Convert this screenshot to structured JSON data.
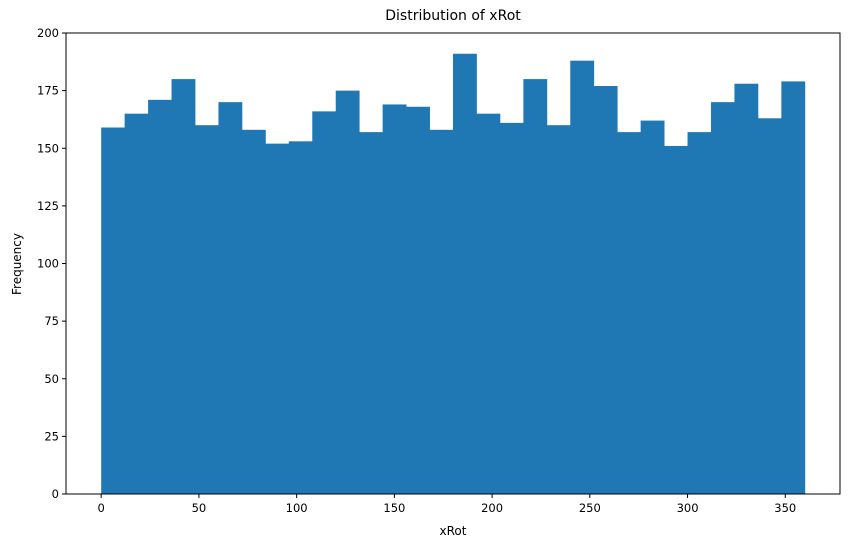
{
  "chart_data": {
    "type": "bar",
    "subtype": "histogram",
    "title": "Distribution of xRot",
    "xlabel": "xRot",
    "ylabel": "Frequency",
    "xlim": [
      -18,
      378
    ],
    "ylim": [
      0,
      200
    ],
    "xticks": [
      0,
      50,
      100,
      150,
      200,
      250,
      300,
      350
    ],
    "yticks": [
      0,
      25,
      50,
      75,
      100,
      125,
      150,
      175,
      200
    ],
    "bin_edges": [
      0,
      12,
      24,
      36,
      48,
      60,
      72,
      84,
      96,
      108,
      120,
      132,
      144,
      156,
      168,
      180,
      192,
      204,
      216,
      228,
      240,
      252,
      264,
      276,
      288,
      300,
      312,
      324,
      336,
      348,
      360
    ],
    "values": [
      159,
      165,
      171,
      180,
      160,
      170,
      158,
      152,
      153,
      166,
      175,
      157,
      169,
      168,
      158,
      191,
      165,
      161,
      180,
      160,
      188,
      177,
      157,
      162,
      151,
      157,
      170,
      178,
      163,
      179
    ],
    "bar_color": "#1f77b4",
    "grid": false,
    "legend": false
  }
}
